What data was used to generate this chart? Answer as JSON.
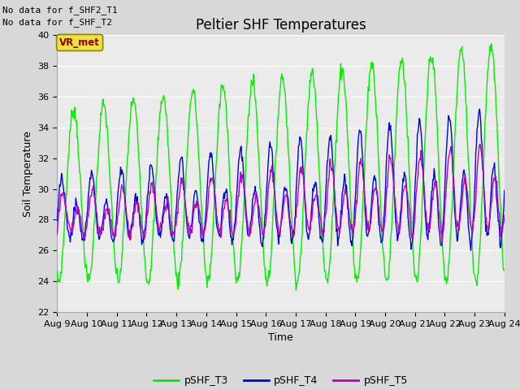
{
  "title": "Peltier SHF Temperatures",
  "xlabel": "Time",
  "ylabel": "Soil Temperature",
  "no_data_text1": "No data for f_SHF2_T1",
  "no_data_text2": "No data for f_SHF_T2",
  "vr_met_label": "VR_met",
  "ylim": [
    22,
    40
  ],
  "yticks": [
    22,
    24,
    26,
    28,
    30,
    32,
    34,
    36,
    38,
    40
  ],
  "xtick_labels": [
    "Aug 9",
    "Aug 10",
    "Aug 11",
    "Aug 12",
    "Aug 13",
    "Aug 14",
    "Aug 15",
    "Aug 16",
    "Aug 17",
    "Aug 18",
    "Aug 19",
    "Aug 20",
    "Aug 21",
    "Aug 22",
    "Aug 23",
    "Aug 24"
  ],
  "color_T3": "#00ee00",
  "color_T4": "#0000dd",
  "color_T5": "#bb00bb",
  "legend_labels": [
    "pSHF_T3",
    "pSHF_T4",
    "pSHF_T5"
  ],
  "bg_color": "#d8d8d8",
  "plot_bg_color": "#ebebeb",
  "grid_color": "#ffffff",
  "line_width": 1.0,
  "font_size_title": 12,
  "font_size_axis": 9,
  "font_size_tick": 8,
  "font_size_nodata": 8,
  "font_size_legend": 9
}
